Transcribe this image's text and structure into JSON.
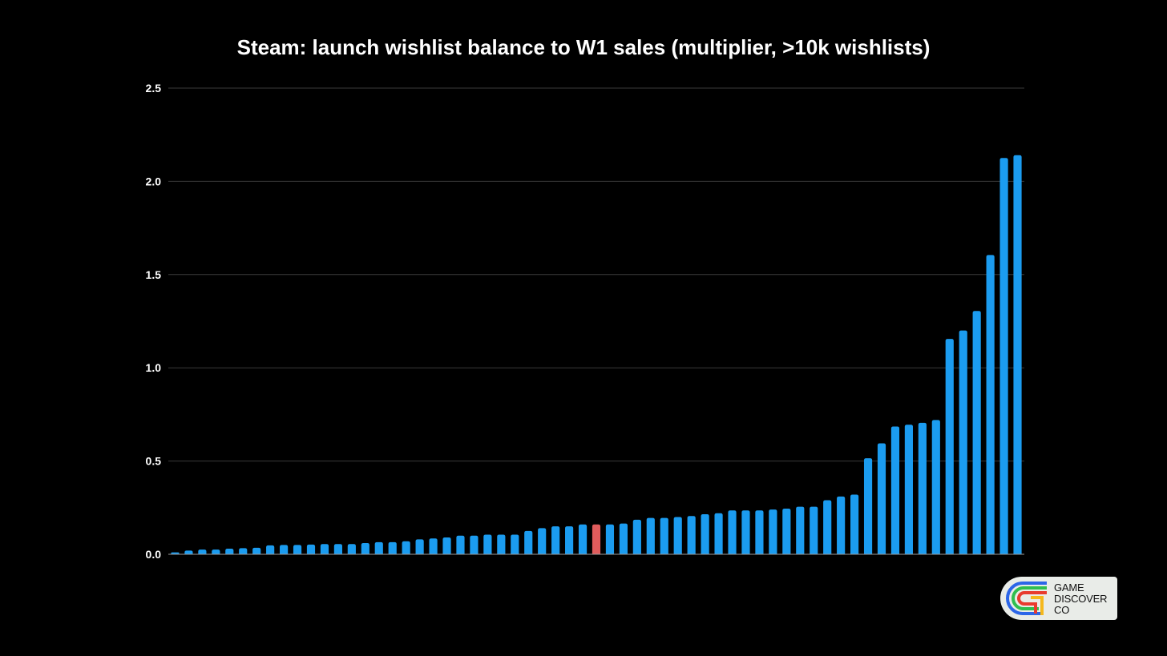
{
  "chart_data": {
    "type": "bar",
    "title": "Steam: launch wishlist balance to W1 sales (multiplier, >10k wishlists)",
    "xlabel": "",
    "ylabel": "",
    "ylim": [
      0,
      2.5
    ],
    "y_ticks": [
      "0.0",
      "0.5",
      "1.0",
      "1.5",
      "2.0",
      "2.5"
    ],
    "grid": true,
    "bar_color": "#1b9cf0",
    "highlight_color": "#e05c5c",
    "highlight_index": 31,
    "values": [
      0.01,
      0.02,
      0.025,
      0.025,
      0.03,
      0.033,
      0.035,
      0.048,
      0.05,
      0.05,
      0.052,
      0.055,
      0.055,
      0.055,
      0.06,
      0.065,
      0.065,
      0.07,
      0.08,
      0.085,
      0.09,
      0.1,
      0.1,
      0.105,
      0.105,
      0.105,
      0.125,
      0.14,
      0.15,
      0.15,
      0.16,
      0.16,
      0.16,
      0.165,
      0.185,
      0.195,
      0.195,
      0.2,
      0.205,
      0.215,
      0.22,
      0.235,
      0.235,
      0.235,
      0.24,
      0.245,
      0.255,
      0.255,
      0.29,
      0.31,
      0.32,
      0.515,
      0.595,
      0.685,
      0.695,
      0.705,
      0.72,
      1.155,
      1.2,
      1.305,
      1.605,
      2.125,
      2.14
    ]
  },
  "logo": {
    "text": "GAME\nDISCOVER\nCO"
  }
}
